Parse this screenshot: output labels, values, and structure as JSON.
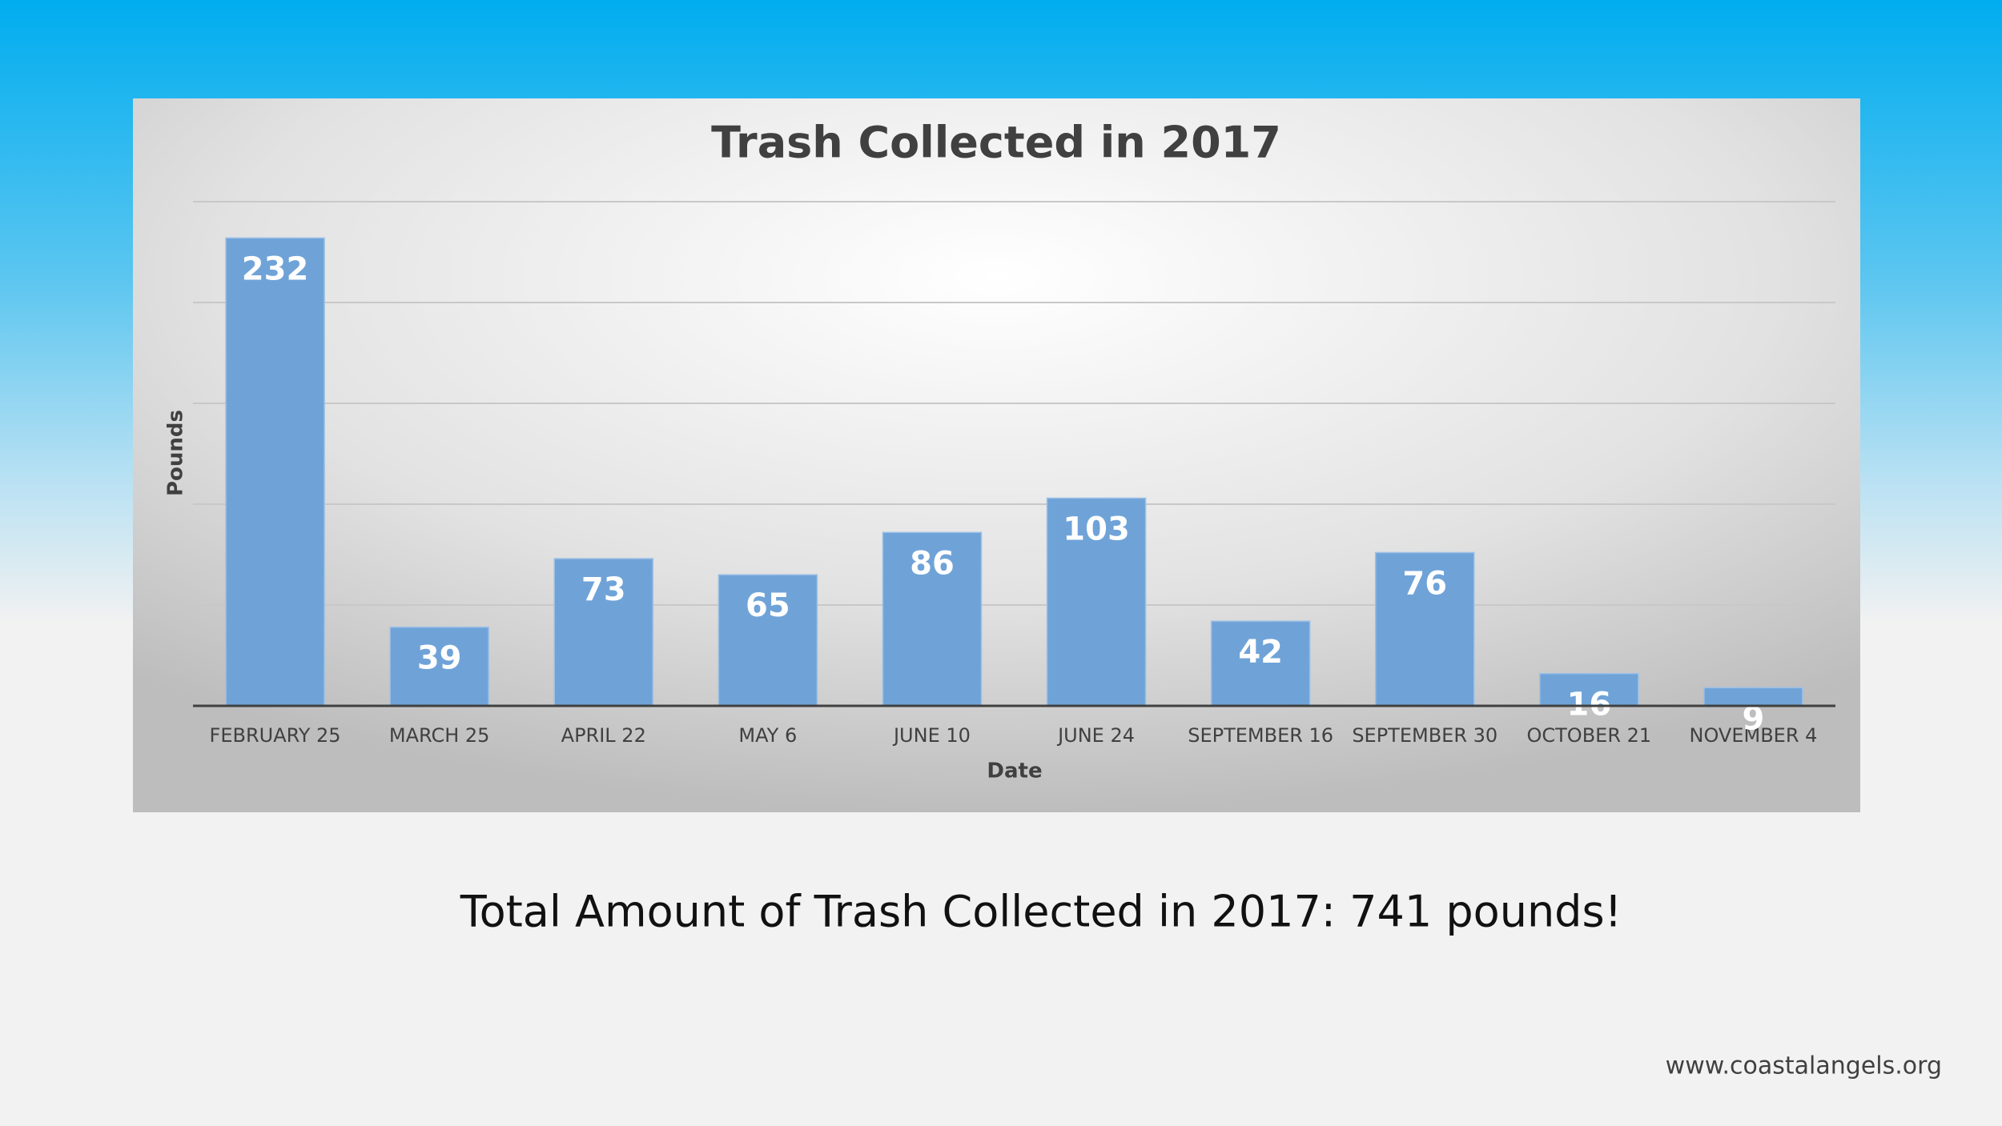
{
  "chart_data": {
    "type": "bar",
    "title": "Trash Collected in 2017",
    "x_label": "Date",
    "y_label": "Pounds",
    "categories": [
      "FEBRUARY 25",
      "MARCH 25",
      "APRIL 22",
      "MAY 6",
      "JUNE 10",
      "JUNE 24",
      "SEPTEMBER 16",
      "SEPTEMBER 30",
      "OCTOBER 21",
      "NOVEMBER 4"
    ],
    "values": [
      232,
      39,
      73,
      65,
      86,
      103,
      42,
      76,
      16,
      9
    ],
    "color": "#6fa3d8",
    "ylim": [
      0,
      250
    ],
    "yticks": [
      0,
      50,
      100,
      150,
      200,
      250
    ],
    "grid": true
  },
  "slide": {
    "summary": "Total Amount of Trash Collected in 2017: 741 pounds!",
    "website": "www.coastalangels.org"
  }
}
